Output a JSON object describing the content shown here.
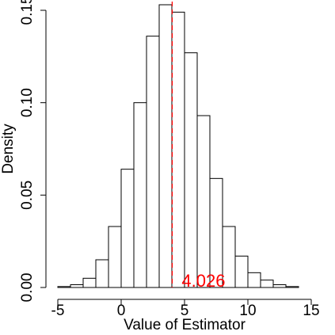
{
  "chart_data": {
    "type": "histogram",
    "title": "",
    "xlabel": "Value of Estimator",
    "ylabel": "Density",
    "xlim": [
      -6,
      16
    ],
    "ylim": [
      0,
      0.15
    ],
    "x_ticks": [
      -5,
      0,
      5,
      10,
      15
    ],
    "x_tick_labels": [
      "-5",
      "0",
      "5",
      "10",
      "15"
    ],
    "y_ticks": [
      0.0,
      0.05,
      0.1,
      0.15
    ],
    "y_tick_labels": [
      "0.00",
      "0.05",
      "0.10",
      "0.15"
    ],
    "bin_width": 1,
    "bins": [
      {
        "x0": -5,
        "x1": -4,
        "density": 0.0005
      },
      {
        "x0": -4,
        "x1": -3,
        "density": 0.0015
      },
      {
        "x0": -3,
        "x1": -2,
        "density": 0.005
      },
      {
        "x0": -2,
        "x1": -1,
        "density": 0.015
      },
      {
        "x0": -1,
        "x1": 0,
        "density": 0.033
      },
      {
        "x0": 0,
        "x1": 1,
        "density": 0.064
      },
      {
        "x0": 1,
        "x1": 2,
        "density": 0.1
      },
      {
        "x0": 2,
        "x1": 3,
        "density": 0.136
      },
      {
        "x0": 3,
        "x1": 4,
        "density": 0.153
      },
      {
        "x0": 4,
        "x1": 5,
        "density": 0.149
      },
      {
        "x0": 5,
        "x1": 6,
        "density": 0.127
      },
      {
        "x0": 6,
        "x1": 7,
        "density": 0.093
      },
      {
        "x0": 7,
        "x1": 8,
        "density": 0.059
      },
      {
        "x0": 8,
        "x1": 9,
        "density": 0.033
      },
      {
        "x0": 9,
        "x1": 10,
        "density": 0.017
      },
      {
        "x0": 10,
        "x1": 11,
        "density": 0.008
      },
      {
        "x0": 11,
        "x1": 12,
        "density": 0.004
      },
      {
        "x0": 12,
        "x1": 13,
        "density": 0.0015
      },
      {
        "x0": 13,
        "x1": 14,
        "density": 0.0005
      }
    ],
    "reference_line": {
      "x": 4.026,
      "style": "dashed",
      "color": "#ff0000"
    },
    "annotation": {
      "text": "4.026",
      "x": 4.026,
      "color": "#ff0000"
    },
    "bar_fill": "#ffffff",
    "bar_stroke": "#000000",
    "grid": false
  }
}
